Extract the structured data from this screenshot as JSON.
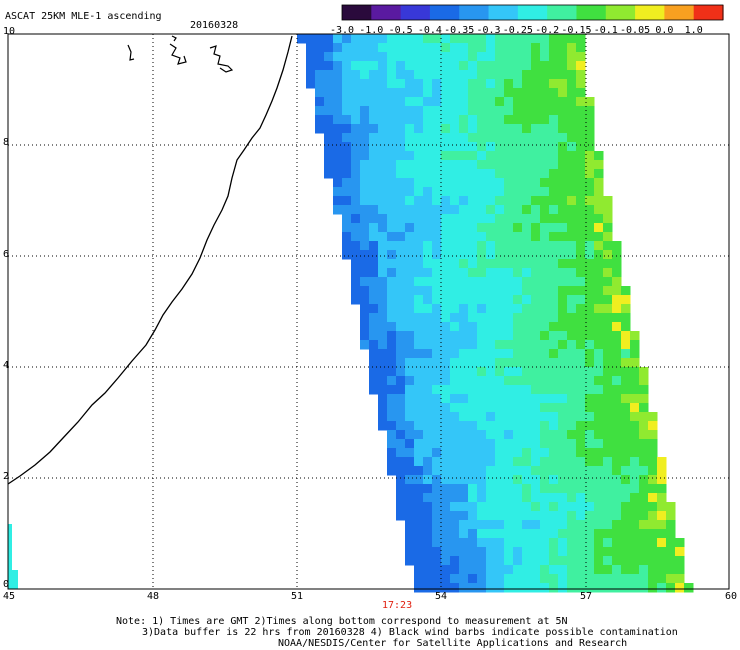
{
  "title": "ASCAT 25KM MLE-1 ascending",
  "date": "20160328",
  "colorbar": {
    "ticks": [
      "-3.0",
      "-1.0",
      "-0.5",
      "-0.4",
      "-0.35",
      "-0.3",
      "-0.25",
      "-0.2",
      "-0.15",
      "-0.1",
      "-0.05",
      "0.0",
      "1.0"
    ],
    "colors": [
      "#2a0a3c",
      "#5a1aa0",
      "#3838d8",
      "#1a6ae6",
      "#2896f0",
      "#34c6f8",
      "#30eee4",
      "#40f0a0",
      "#40e040",
      "#90ea30",
      "#f0ee20",
      "#f8a020",
      "#f03018"
    ]
  },
  "axes": {
    "x_ticks": [
      "45",
      "48",
      "51",
      "54",
      "57",
      "60"
    ],
    "y_ticks": [
      "0",
      "2",
      "4",
      "6",
      "8",
      "10"
    ],
    "x_range": [
      45,
      60
    ],
    "y_range": [
      0,
      10
    ],
    "grid": "dotted"
  },
  "swath_time": "17:23",
  "notes": {
    "line1": "Note: 1) Times are GMT 2)Times along bottom correspond to measurement at 5N",
    "line2": "3)Data buffer is 22 hrs from 20160328 4) Black wind barbs indicate possible contamination",
    "line3": "NOAA/NESDIS/Center for Satellite Applications and Research"
  }
}
